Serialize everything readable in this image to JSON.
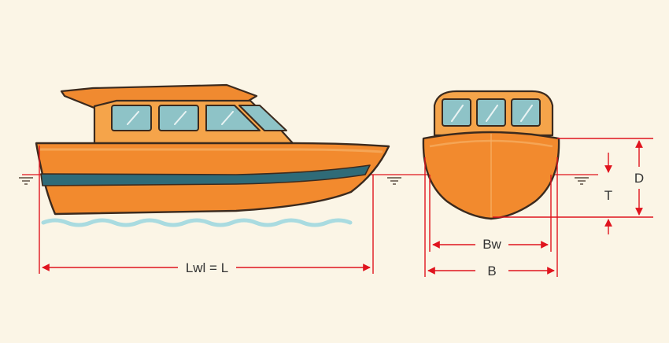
{
  "labels": {
    "length": "Lwl = L",
    "waterline_beam": "Bw",
    "beam": "B",
    "draft": "T",
    "depth": "D"
  },
  "colors": {
    "background": "#fbf5e6",
    "hull": "#f28a2e",
    "hull_dark": "#d96b1c",
    "stripe": "#2f6b78",
    "cabin": "#f5a44a",
    "roof": "#f08a30",
    "window": "#8ec3c7",
    "outline": "#3b2a1e",
    "water": "#a9dbe0",
    "dimension": "#e0141e"
  },
  "icons": {
    "waterline_symbol": "waterline-triangle-icon"
  }
}
